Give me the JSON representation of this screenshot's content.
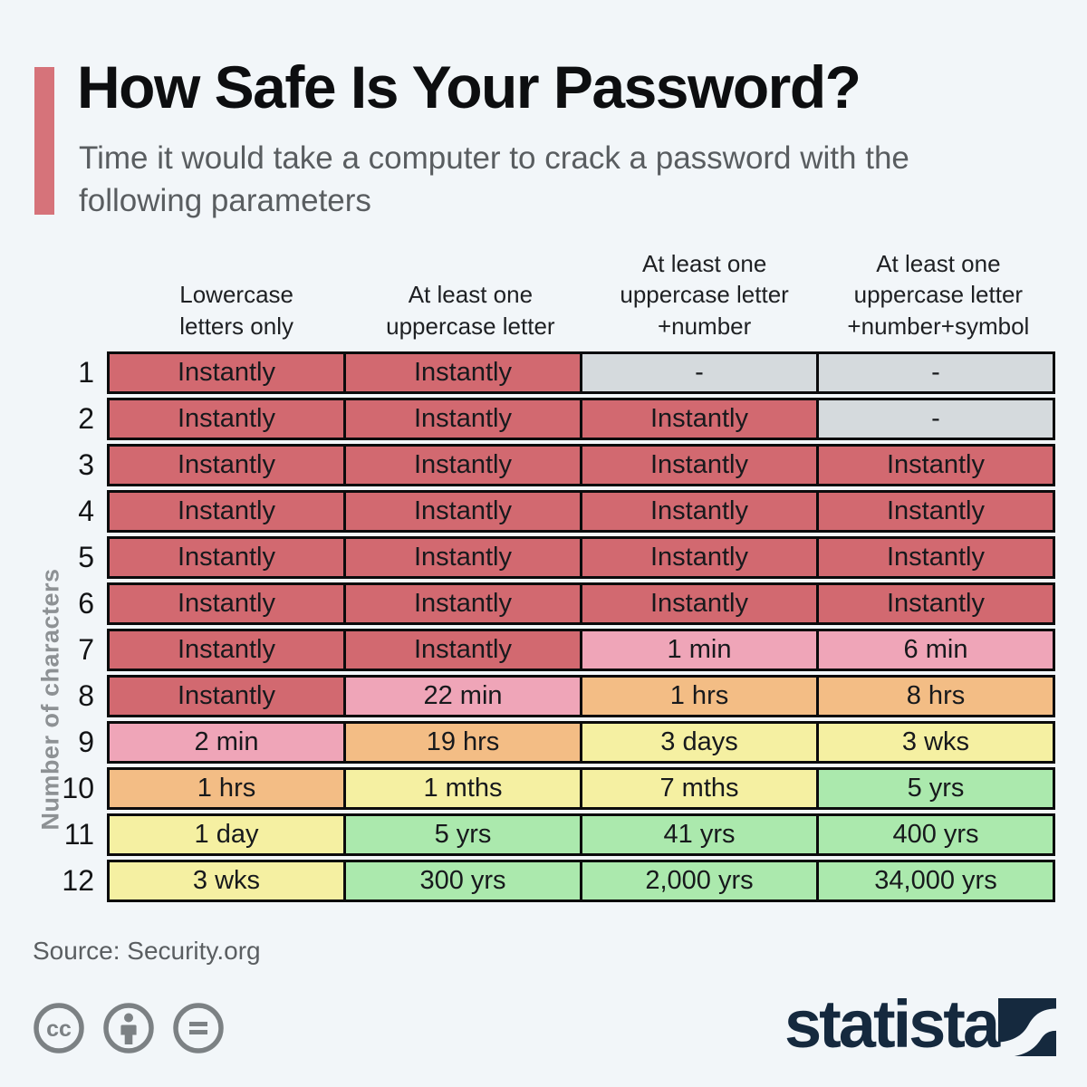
{
  "page": {
    "background_color": "#f2f6f9",
    "accent_color": "#d6737a"
  },
  "header": {
    "title": "How Safe Is Your Password?",
    "subtitle": "Time it would take a computer to crack a password with the following parameters"
  },
  "chart_data": {
    "type": "heatmap",
    "title": "How Safe Is Your Password?",
    "subtitle": "Time it would take a computer to crack a password with the following parameters",
    "ylabel": "Number of characters",
    "columns": [
      {
        "label": "Lowercase letters only",
        "lines": [
          "Lowercase",
          "letters only"
        ]
      },
      {
        "label": "At least one uppercase letter",
        "lines": [
          "At least one",
          "uppercase letter"
        ]
      },
      {
        "label": "At least one uppercase letter +number",
        "lines": [
          "At least one",
          "uppercase letter",
          "+number"
        ]
      },
      {
        "label": "At least one uppercase letter +number+symbol",
        "lines": [
          "At least one",
          "uppercase letter",
          "+number+symbol"
        ]
      }
    ],
    "palette": {
      "red": "#d26970",
      "pink": "#efa5b8",
      "orange": "#f3bd85",
      "yellow": "#f5f0a2",
      "green": "#abe9ad",
      "gray": "#d5dadd"
    },
    "rows": [
      {
        "label": "1",
        "cells": [
          {
            "text": "Instantly",
            "color": "red"
          },
          {
            "text": "Instantly",
            "color": "red"
          },
          {
            "text": "-",
            "color": "gray"
          },
          {
            "text": "-",
            "color": "gray"
          }
        ]
      },
      {
        "label": "2",
        "cells": [
          {
            "text": "Instantly",
            "color": "red"
          },
          {
            "text": "Instantly",
            "color": "red"
          },
          {
            "text": "Instantly",
            "color": "red"
          },
          {
            "text": "-",
            "color": "gray"
          }
        ]
      },
      {
        "label": "3",
        "cells": [
          {
            "text": "Instantly",
            "color": "red"
          },
          {
            "text": "Instantly",
            "color": "red"
          },
          {
            "text": "Instantly",
            "color": "red"
          },
          {
            "text": "Instantly",
            "color": "red"
          }
        ]
      },
      {
        "label": "4",
        "cells": [
          {
            "text": "Instantly",
            "color": "red"
          },
          {
            "text": "Instantly",
            "color": "red"
          },
          {
            "text": "Instantly",
            "color": "red"
          },
          {
            "text": "Instantly",
            "color": "red"
          }
        ]
      },
      {
        "label": "5",
        "cells": [
          {
            "text": "Instantly",
            "color": "red"
          },
          {
            "text": "Instantly",
            "color": "red"
          },
          {
            "text": "Instantly",
            "color": "red"
          },
          {
            "text": "Instantly",
            "color": "red"
          }
        ]
      },
      {
        "label": "6",
        "cells": [
          {
            "text": "Instantly",
            "color": "red"
          },
          {
            "text": "Instantly",
            "color": "red"
          },
          {
            "text": "Instantly",
            "color": "red"
          },
          {
            "text": "Instantly",
            "color": "red"
          }
        ]
      },
      {
        "label": "7",
        "cells": [
          {
            "text": "Instantly",
            "color": "red"
          },
          {
            "text": "Instantly",
            "color": "red"
          },
          {
            "text": "1 min",
            "color": "pink"
          },
          {
            "text": "6 min",
            "color": "pink"
          }
        ]
      },
      {
        "label": "8",
        "cells": [
          {
            "text": "Instantly",
            "color": "red"
          },
          {
            "text": "22 min",
            "color": "pink"
          },
          {
            "text": "1 hrs",
            "color": "orange"
          },
          {
            "text": "8 hrs",
            "color": "orange"
          }
        ]
      },
      {
        "label": "9",
        "cells": [
          {
            "text": "2 min",
            "color": "pink"
          },
          {
            "text": "19 hrs",
            "color": "orange"
          },
          {
            "text": "3 days",
            "color": "yellow"
          },
          {
            "text": "3 wks",
            "color": "yellow"
          }
        ]
      },
      {
        "label": "10",
        "cells": [
          {
            "text": "1 hrs",
            "color": "orange"
          },
          {
            "text": "1 mths",
            "color": "yellow"
          },
          {
            "text": "7 mths",
            "color": "yellow"
          },
          {
            "text": "5 yrs",
            "color": "green"
          }
        ]
      },
      {
        "label": "11",
        "cells": [
          {
            "text": "1 day",
            "color": "yellow"
          },
          {
            "text": "5 yrs",
            "color": "green"
          },
          {
            "text": "41 yrs",
            "color": "green"
          },
          {
            "text": "400 yrs",
            "color": "green"
          }
        ]
      },
      {
        "label": "12",
        "cells": [
          {
            "text": "3 wks",
            "color": "yellow"
          },
          {
            "text": "300 yrs",
            "color": "green"
          },
          {
            "text": "2,000 yrs",
            "color": "green"
          },
          {
            "text": "34,000 yrs",
            "color": "green"
          }
        ]
      }
    ]
  },
  "footer": {
    "source": "Source: Security.org",
    "license_icons": [
      "cc-icon",
      "attribution-person-icon",
      "no-derivatives-equals-icon"
    ],
    "brand": "statista",
    "brand_color": "#15293e",
    "icon_color": "#7c8184"
  }
}
